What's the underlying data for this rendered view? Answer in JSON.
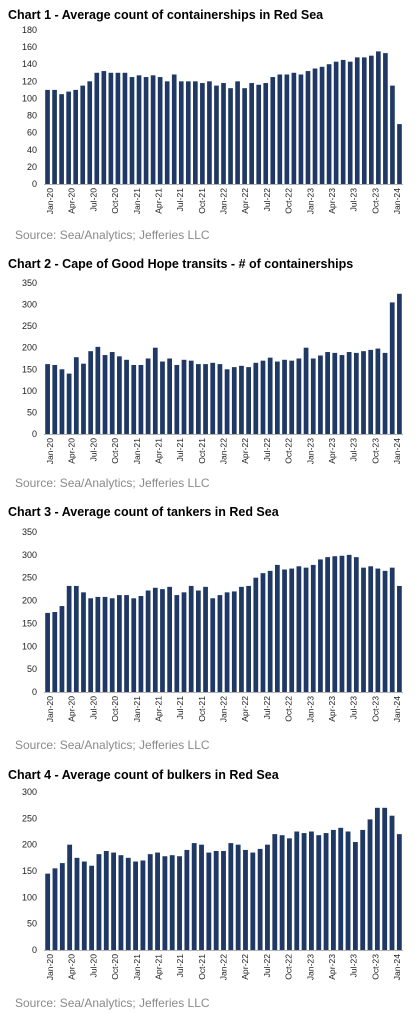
{
  "chart_data": [
    {
      "type": "bar",
      "title": "Chart 1 - Average count of containerships in Red Sea",
      "source": "Source: Sea/Analytics; Jefferies LLC",
      "ylim": [
        0,
        180
      ],
      "yticks": [
        0,
        20,
        40,
        60,
        80,
        100,
        120,
        140,
        160,
        180
      ],
      "tick_labels": [
        "Jan-20",
        "Apr-20",
        "Jul-20",
        "Oct-20",
        "Jan-21",
        "Apr-21",
        "Jul-21",
        "Oct-21",
        "Jan-22",
        "Apr-22",
        "Jul-22",
        "Oct-22",
        "Jan-23",
        "Apr-23",
        "Jul-23",
        "Oct-23",
        "Jan-24"
      ],
      "values": [
        110,
        110,
        105,
        108,
        110,
        115,
        120,
        130,
        132,
        130,
        130,
        130,
        125,
        127,
        125,
        127,
        125,
        120,
        128,
        120,
        120,
        120,
        118,
        120,
        115,
        118,
        112,
        120,
        112,
        118,
        116,
        118,
        125,
        128,
        128,
        130,
        128,
        132,
        135,
        137,
        140,
        143,
        145,
        143,
        148,
        148,
        150,
        155,
        153,
        115,
        70
      ]
    },
    {
      "type": "bar",
      "title": "Chart 2 - Cape of Good Hope transits - # of containerships",
      "source": "Source: Sea/Analytics; Jefferies LLC",
      "ylim": [
        0,
        350
      ],
      "yticks": [
        0,
        50,
        100,
        150,
        200,
        250,
        300,
        350
      ],
      "tick_labels": [
        "Jan-20",
        "Apr-20",
        "Jul-20",
        "Oct-20",
        "Jan-21",
        "Apr-21",
        "Jul-21",
        "Oct-21",
        "Jan-22",
        "Apr-22",
        "Jul-22",
        "Oct-22",
        "Jan-23",
        "Apr-23",
        "Jul-23",
        "Oct-23",
        "Jan-24"
      ],
      "values": [
        162,
        160,
        150,
        140,
        178,
        163,
        192,
        202,
        183,
        190,
        180,
        172,
        160,
        160,
        175,
        200,
        168,
        175,
        160,
        172,
        170,
        162,
        162,
        165,
        162,
        150,
        155,
        158,
        155,
        165,
        170,
        177,
        168,
        172,
        170,
        175,
        200,
        175,
        182,
        190,
        188,
        183,
        190,
        188,
        192,
        195,
        198,
        188,
        305,
        325
      ]
    },
    {
      "type": "bar",
      "title": "Chart 3 - Average count of tankers in Red Sea",
      "source": "Source: Sea/Analytics; Jefferies LLC",
      "ylim": [
        0,
        350
      ],
      "yticks": [
        0,
        50,
        100,
        150,
        200,
        250,
        300,
        350
      ],
      "tick_labels": [
        "Jan-20",
        "Apr-20",
        "Jul-20",
        "Oct-20",
        "Jan-21",
        "Apr-21",
        "Jul-21",
        "Oct-21",
        "Jan-22",
        "Apr-22",
        "Jul-22",
        "Oct-22",
        "Jan-23",
        "Apr-23",
        "Jul-23",
        "Oct-23",
        "Jan-24"
      ],
      "values": [
        173,
        175,
        188,
        232,
        232,
        218,
        205,
        208,
        208,
        205,
        212,
        212,
        205,
        210,
        222,
        228,
        225,
        230,
        212,
        218,
        232,
        222,
        230,
        205,
        212,
        218,
        220,
        230,
        232,
        250,
        260,
        265,
        278,
        268,
        270,
        275,
        272,
        278,
        290,
        295,
        297,
        298,
        300,
        295,
        272,
        275,
        270,
        265,
        272,
        232
      ]
    },
    {
      "type": "bar",
      "title": "Chart 4 - Average count of bulkers in Red Sea",
      "source": "Source: Sea/Analytics; Jefferies LLC",
      "ylim": [
        0,
        300
      ],
      "yticks": [
        0,
        50,
        100,
        150,
        200,
        250,
        300
      ],
      "tick_labels": [
        "Jan-20",
        "Apr-20",
        "Jul-20",
        "Oct-20",
        "Jan-21",
        "Apr-21",
        "Jul-21",
        "Oct-21",
        "Jan-22",
        "Apr-22",
        "Jul-22",
        "Oct-22",
        "Jan-23",
        "Apr-23",
        "Jul-23",
        "Oct-23",
        "Jan-24"
      ],
      "values": [
        145,
        155,
        165,
        200,
        175,
        168,
        160,
        182,
        188,
        185,
        180,
        175,
        168,
        170,
        182,
        185,
        178,
        180,
        178,
        190,
        203,
        200,
        185,
        188,
        188,
        203,
        200,
        190,
        185,
        192,
        200,
        220,
        218,
        212,
        225,
        222,
        225,
        218,
        222,
        228,
        232,
        225,
        205,
        228,
        248,
        270,
        270,
        255,
        220
      ]
    }
  ]
}
